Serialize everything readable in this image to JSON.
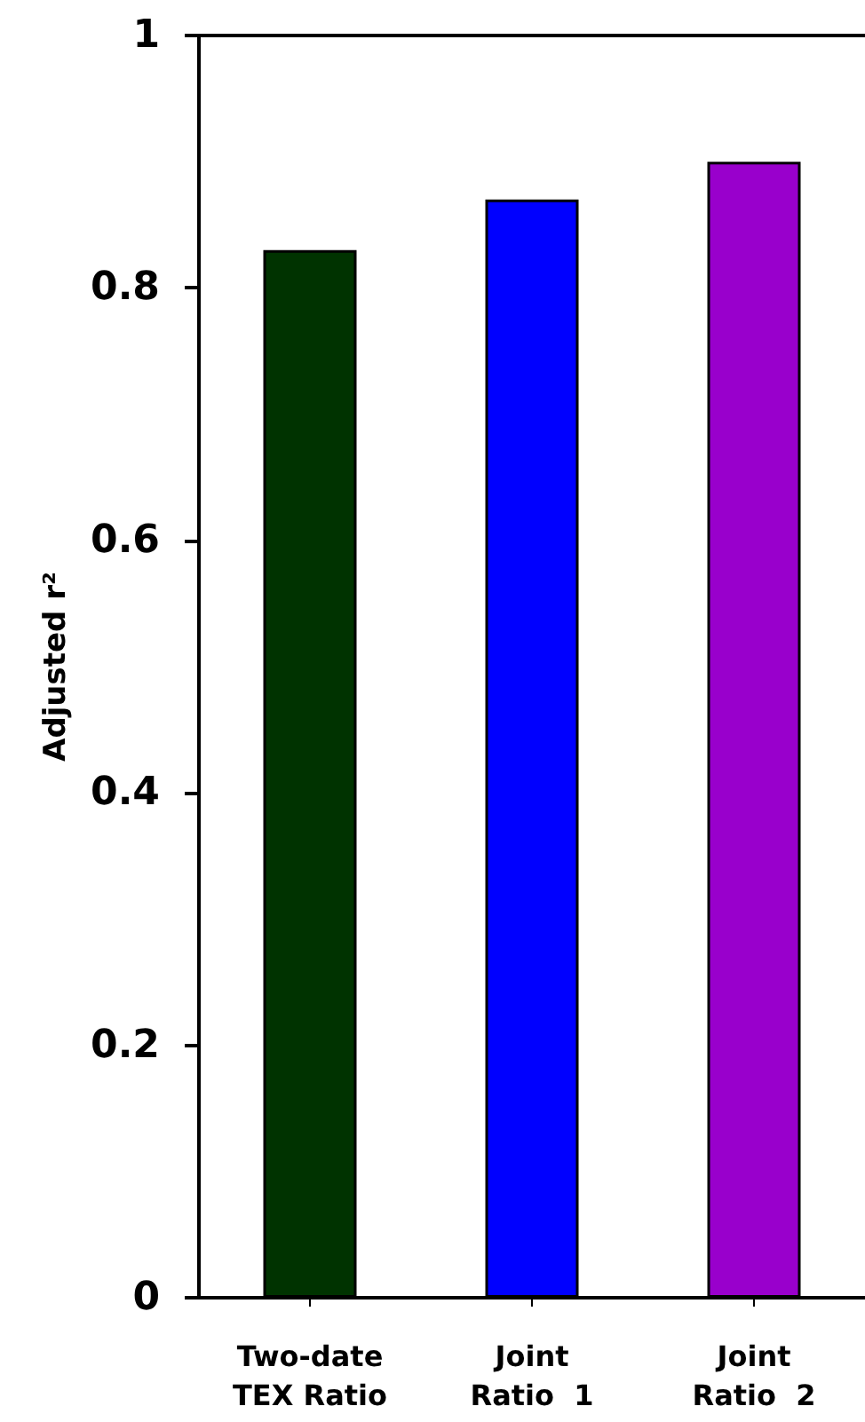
{
  "chart_data": {
    "type": "bar",
    "ylabel": "Adjusted r²",
    "categories": [
      "Two-date\nTEX Ratio",
      "Joint\nRatio  1",
      "Joint\nRatio  2"
    ],
    "values": [
      0.83,
      0.87,
      0.9
    ],
    "colors": [
      "#003300",
      "#0000ff",
      "#9900cc"
    ],
    "ylim": [
      0,
      1
    ],
    "yticks": [
      0,
      0.2,
      0.4,
      0.6,
      0.8,
      1
    ]
  }
}
